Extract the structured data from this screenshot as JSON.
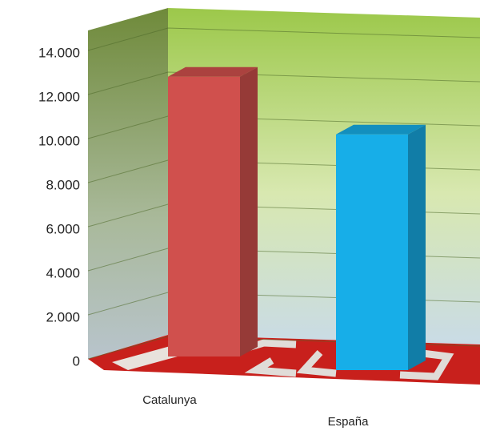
{
  "chart_data": {
    "type": "bar3d",
    "categories": [
      "Catalunya",
      "España"
    ],
    "values": [
      12700,
      10700
    ],
    "colors": [
      "#d0504d",
      "#17aee8"
    ],
    "ylim": [
      0,
      14000
    ],
    "yticks": [
      {
        "value": 0,
        "label": "0"
      },
      {
        "value": 2000,
        "label": "2.000"
      },
      {
        "value": 4000,
        "label": "4.000"
      },
      {
        "value": 6000,
        "label": "6.000"
      },
      {
        "value": 8000,
        "label": "8.000"
      },
      {
        "value": 10000,
        "label": "10.000"
      },
      {
        "value": 12000,
        "label": "12.000"
      },
      {
        "value": 14000,
        "label": "14.000"
      }
    ],
    "grid": true
  }
}
